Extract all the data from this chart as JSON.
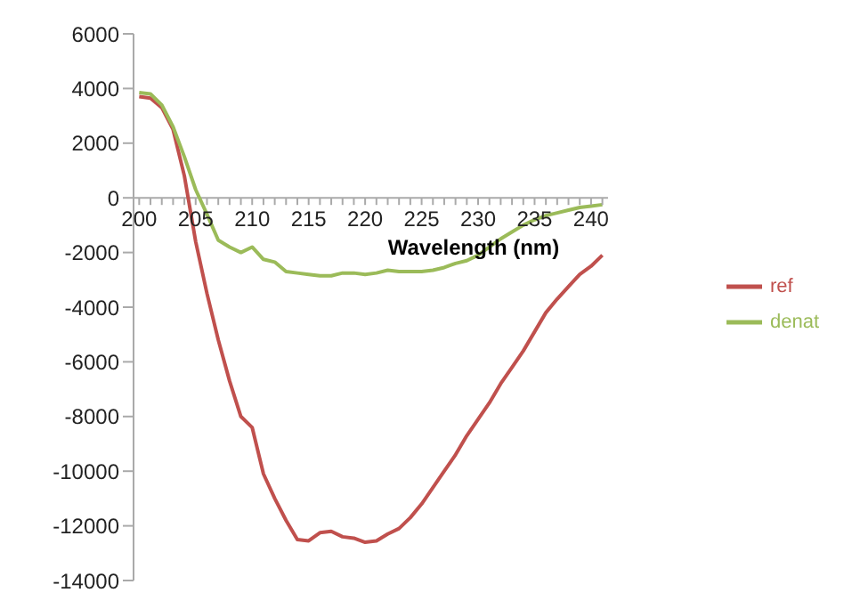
{
  "chart_data": {
    "type": "line",
    "xlabel": "Wavelength (nm)",
    "x": [
      200,
      201,
      202,
      203,
      204,
      205,
      206,
      207,
      208,
      209,
      210,
      211,
      212,
      213,
      214,
      215,
      216,
      217,
      218,
      219,
      220,
      221,
      222,
      223,
      224,
      225,
      226,
      227,
      228,
      229,
      230,
      231,
      232,
      233,
      234,
      235,
      236,
      237,
      238,
      239,
      240,
      241
    ],
    "series": [
      {
        "name": "ref",
        "color": "#c0504d",
        "values": [
          3700,
          3650,
          3300,
          2500,
          800,
          -1600,
          -3500,
          -5200,
          -6700,
          -8000,
          -8400,
          -10100,
          -11000,
          -11800,
          -12500,
          -12550,
          -12250,
          -12200,
          -12400,
          -12450,
          -12600,
          -12550,
          -12300,
          -12100,
          -11700,
          -11200,
          -10600,
          -10000,
          -9400,
          -8700,
          -8100,
          -7500,
          -6800,
          -6200,
          -5600,
          -4900,
          -4200,
          -3700,
          -3250,
          -2800,
          -2500,
          -2100
        ]
      },
      {
        "name": "denat",
        "color": "#9bbb59",
        "values": [
          3850,
          3800,
          3400,
          2600,
          1500,
          300,
          -600,
          -1550,
          -1800,
          -2000,
          -1800,
          -2250,
          -2350,
          -2700,
          -2750,
          -2800,
          -2850,
          -2850,
          -2750,
          -2750,
          -2800,
          -2750,
          -2650,
          -2700,
          -2700,
          -2700,
          -2650,
          -2550,
          -2400,
          -2300,
          -2100,
          -1800,
          -1500,
          -1250,
          -1000,
          -800,
          -650,
          -550,
          -450,
          -350,
          -300,
          -250
        ]
      }
    ],
    "xlim": [
      199.5,
      241.5
    ],
    "xticks": [
      200,
      {
        "value": 201,
        "label": null
      },
      {
        "value": 202,
        "label": null
      },
      {
        "value": 203,
        "label": null
      },
      {
        "value": 204,
        "label": null
      },
      205,
      {
        "value": 206,
        "label": null
      },
      {
        "value": 207,
        "label": null
      },
      {
        "value": 208,
        "label": null
      },
      {
        "value": 209,
        "label": null
      },
      210,
      {
        "value": 211,
        "label": null
      },
      {
        "value": 212,
        "label": null
      },
      {
        "value": 213,
        "label": null
      },
      {
        "value": 214,
        "label": null
      },
      215,
      {
        "value": 216,
        "label": null
      },
      {
        "value": 217,
        "label": null
      },
      {
        "value": 218,
        "label": null
      },
      {
        "value": 219,
        "label": null
      },
      220,
      {
        "value": 221,
        "label": null
      },
      {
        "value": 222,
        "label": null
      },
      {
        "value": 223,
        "label": null
      },
      {
        "value": 224,
        "label": null
      },
      225,
      {
        "value": 226,
        "label": null
      },
      {
        "value": 227,
        "label": null
      },
      {
        "value": 228,
        "label": null
      },
      {
        "value": 229,
        "label": null
      },
      230,
      {
        "value": 231,
        "label": null
      },
      {
        "value": 232,
        "label": null
      },
      {
        "value": 233,
        "label": null
      },
      {
        "value": 234,
        "label": null
      },
      235,
      {
        "value": 236,
        "label": null
      },
      {
        "value": 237,
        "label": null
      },
      {
        "value": 238,
        "label": null
      },
      {
        "value": 239,
        "label": null
      },
      240,
      {
        "value": 241,
        "label": null
      }
    ],
    "ylim": [
      -14000,
      6000
    ],
    "yticks": [
      -14000,
      -12000,
      -10000,
      -8000,
      -6000,
      -4000,
      -2000,
      0,
      2000,
      4000,
      6000
    ],
    "legend": "right",
    "marker": "none",
    "line_style": "solid",
    "grid": false
  }
}
